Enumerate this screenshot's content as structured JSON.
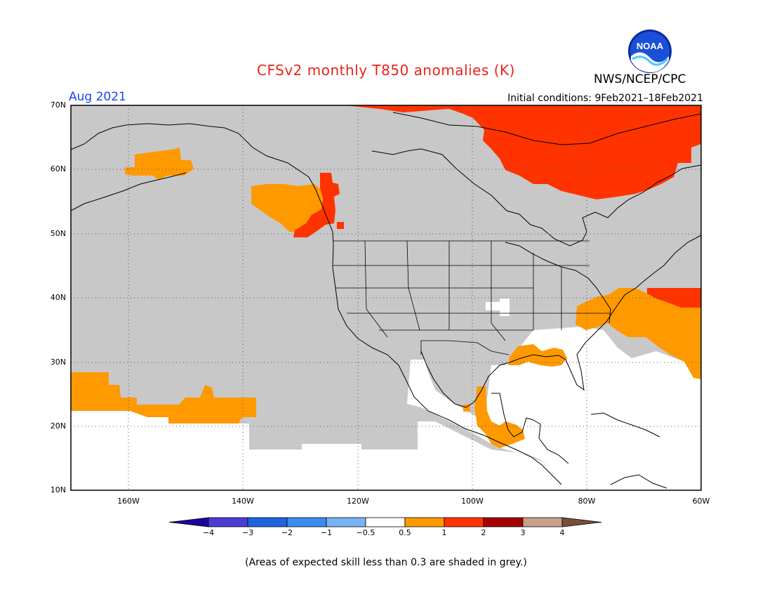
{
  "title": "CFSv2 monthly T850 anomalies (K)",
  "agency": "NWS/NCEP/CPC",
  "logo_text": "NOAA",
  "valid_month": "Aug 2021",
  "initial_conditions": "Initial conditions: 9Feb2021–18Feb2021",
  "footnote": "(Areas of expected skill less than 0.3 are shaded in grey.)",
  "lat_labels": [
    "70N",
    "60N",
    "50N",
    "40N",
    "30N",
    "20N",
    "10N"
  ],
  "lon_labels": [
    "160W",
    "140W",
    "120W",
    "100W",
    "80W",
    "60W"
  ],
  "colorbar": {
    "labels": [
      "−4",
      "−3",
      "−2",
      "−1",
      "−0.5",
      "0.5",
      "1",
      "2",
      "3",
      "4"
    ],
    "colors": [
      "#1e00a0",
      "#4b3cd2",
      "#1e64dc",
      "#3c8cf0",
      "#78b4f5",
      "#ffffff",
      "#ff9900",
      "#ff3300",
      "#a50000",
      "#c8a08c",
      "#7a4e3c"
    ]
  },
  "colors": {
    "grey": "#c8c8c8",
    "orange": "#ff9900",
    "red": "#ff3300"
  }
}
